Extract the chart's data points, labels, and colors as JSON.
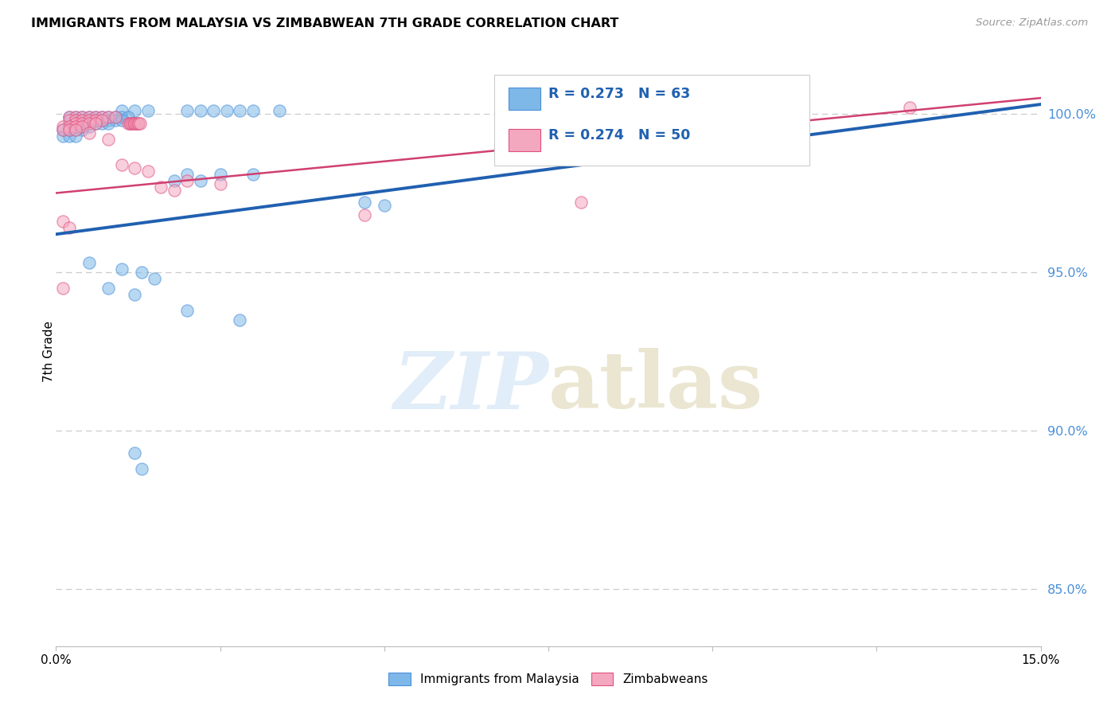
{
  "title": "IMMIGRANTS FROM MALAYSIA VS ZIMBABWEAN 7TH GRADE CORRELATION CHART",
  "source": "Source: ZipAtlas.com",
  "ylabel": "7th Grade",
  "yaxis_labels": [
    "100.0%",
    "95.0%",
    "90.0%",
    "85.0%"
  ],
  "yaxis_values": [
    1.0,
    0.95,
    0.9,
    0.85
  ],
  "xmin": 0.0,
  "xmax": 0.15,
  "ymin": 0.832,
  "ymax": 1.018,
  "legend_blue_label": "Immigrants from Malaysia",
  "legend_pink_label": "Zimbabweans",
  "R_blue": 0.273,
  "N_blue": 63,
  "R_pink": 0.274,
  "N_pink": 50,
  "blue_line_x0": 0.0,
  "blue_line_x1": 0.15,
  "blue_line_y0": 0.962,
  "blue_line_y1": 1.003,
  "pink_line_x0": 0.0,
  "pink_line_x1": 0.15,
  "pink_line_y0": 0.975,
  "pink_line_y1": 1.005,
  "background_color": "#ffffff",
  "blue_dot_color": "#7eb8e8",
  "blue_edge_color": "#4a90d9",
  "pink_dot_color": "#f4a8c0",
  "pink_edge_color": "#e05080",
  "blue_line_color": "#2060b0",
  "pink_line_color": "#d04070",
  "grid_color": "#cccccc",
  "right_axis_color": "#4a90d9",
  "legend_text_color": "#2060b0",
  "dot_size": 120,
  "dot_alpha": 0.55
}
